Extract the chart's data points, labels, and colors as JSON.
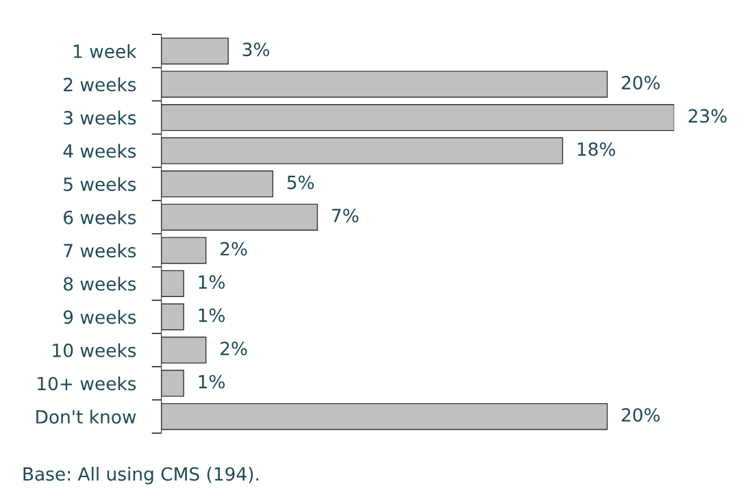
{
  "chart_data": {
    "type": "bar",
    "orientation": "horizontal",
    "categories": [
      "1 week",
      "2 weeks",
      "3 weeks",
      "4 weeks",
      "5 weeks",
      "6 weeks",
      "7 weeks",
      "8 weeks",
      "9 weeks",
      "10 weeks",
      "10+ weeks",
      "Don't know"
    ],
    "values": [
      3,
      20,
      23,
      18,
      5,
      7,
      2,
      1,
      1,
      2,
      1,
      20
    ],
    "value_labels": [
      "3%",
      "20%",
      "23%",
      "18%",
      "5%",
      "7%",
      "2%",
      "1%",
      "1%",
      "2%",
      "1%",
      "20%"
    ],
    "color": "#bfc0c2",
    "annotations": [
      "Base: All using CMS (194)."
    ],
    "grid": false
  }
}
